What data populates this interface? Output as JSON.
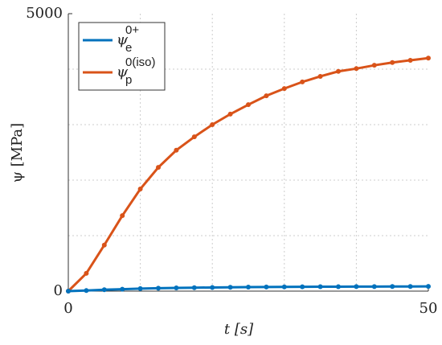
{
  "chart_data": {
    "type": "line",
    "xlabel": "t [s]",
    "ylabel": "ψ [MPa]",
    "x": [
      0,
      2.5,
      5,
      7.5,
      10,
      12.5,
      15,
      17.5,
      20,
      22.5,
      25,
      27.5,
      30,
      32.5,
      35,
      37.5,
      40,
      42.5,
      45,
      47.5,
      50
    ],
    "series": [
      {
        "name": "ψ",
        "sub": "e",
        "sup": "0+",
        "color": "#0072bd",
        "values": [
          0,
          10,
          25,
          35,
          45,
          52,
          58,
          62,
          66,
          69,
          72,
          74,
          76,
          78,
          79,
          80,
          81,
          82,
          83,
          84,
          85
        ]
      },
      {
        "name": "ψ",
        "sub": "p",
        "sup": "0(iso)",
        "color": "#d95319",
        "values": [
          0,
          320,
          830,
          1360,
          1840,
          2230,
          2540,
          2780,
          3000,
          3190,
          3360,
          3520,
          3650,
          3770,
          3870,
          3960,
          4010,
          4070,
          4120,
          4160,
          4200
        ]
      }
    ],
    "xlim": [
      0,
      50
    ],
    "xticks": [
      0,
      50
    ],
    "ylim": [
      0,
      5000
    ],
    "yticks": [
      0,
      5000
    ],
    "grid": true,
    "legend": "upper left"
  }
}
